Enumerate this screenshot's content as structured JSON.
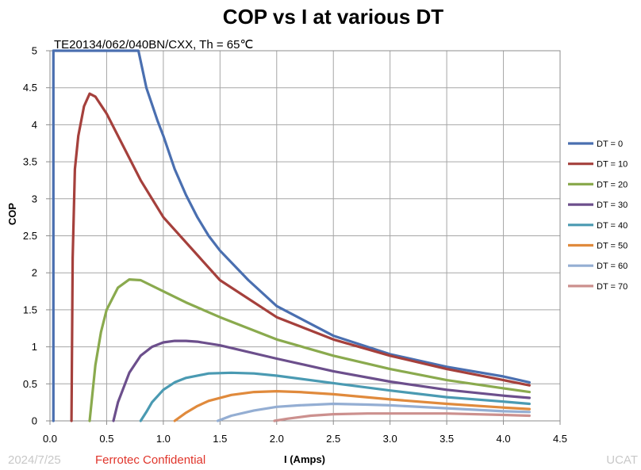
{
  "chart_data": {
    "type": "line",
    "title": "COP vs I at various DT",
    "subtitle": "TE20134/062/040BN/CXX,  Th = 65℃",
    "xlabel": "I (Amps)",
    "ylabel": "COP",
    "xlim": [
      0,
      4.5
    ],
    "ylim": [
      0,
      5
    ],
    "xticks": [
      "0.0",
      "0.5",
      "1.0",
      "1.5",
      "2.0",
      "2.5",
      "3.0",
      "3.5",
      "4.0",
      "4.5"
    ],
    "yticks": [
      "0",
      "0.5",
      "1",
      "1.5",
      "2",
      "2.5",
      "3",
      "3.5",
      "4",
      "4.5",
      "5"
    ],
    "grid": true,
    "legend_position": "right",
    "series": [
      {
        "name": "DT = 0",
        "color": "#4a6fb0",
        "x": [
          0.03,
          0.03,
          0.78,
          0.85,
          0.95,
          1.0,
          1.1,
          1.2,
          1.3,
          1.4,
          1.5,
          1.75,
          2.0,
          2.5,
          3.0,
          3.5,
          4.0,
          4.23
        ],
        "y": [
          0.0,
          5.0,
          5.0,
          4.5,
          4.05,
          3.85,
          3.4,
          3.05,
          2.75,
          2.5,
          2.3,
          1.9,
          1.55,
          1.15,
          0.9,
          0.73,
          0.6,
          0.52
        ]
      },
      {
        "name": "DT = 10",
        "color": "#a5403c",
        "x": [
          0.19,
          0.2,
          0.22,
          0.25,
          0.3,
          0.35,
          0.4,
          0.5,
          0.6,
          0.8,
          1.0,
          1.5,
          2.0,
          2.5,
          3.0,
          3.5,
          4.0,
          4.23
        ],
        "y": [
          0.0,
          2.2,
          3.4,
          3.85,
          4.25,
          4.42,
          4.38,
          4.15,
          3.85,
          3.25,
          2.75,
          1.9,
          1.4,
          1.1,
          0.88,
          0.7,
          0.55,
          0.48
        ]
      },
      {
        "name": "DT = 20",
        "color": "#8aaa4e",
        "x": [
          0.35,
          0.4,
          0.45,
          0.5,
          0.6,
          0.7,
          0.8,
          1.0,
          1.2,
          1.5,
          2.0,
          2.5,
          3.0,
          3.5,
          4.0,
          4.23
        ],
        "y": [
          0.0,
          0.75,
          1.2,
          1.5,
          1.8,
          1.91,
          1.9,
          1.75,
          1.6,
          1.4,
          1.1,
          0.88,
          0.7,
          0.55,
          0.44,
          0.39
        ]
      },
      {
        "name": "DT = 30",
        "color": "#6c4f8c",
        "x": [
          0.56,
          0.6,
          0.7,
          0.8,
          0.9,
          1.0,
          1.1,
          1.2,
          1.3,
          1.5,
          2.0,
          2.5,
          3.0,
          3.5,
          4.0,
          4.23
        ],
        "y": [
          0.0,
          0.25,
          0.65,
          0.88,
          1.0,
          1.06,
          1.08,
          1.08,
          1.07,
          1.02,
          0.84,
          0.67,
          0.53,
          0.42,
          0.34,
          0.31
        ]
      },
      {
        "name": "DT = 40",
        "color": "#4a9ab2",
        "x": [
          0.8,
          0.85,
          0.9,
          1.0,
          1.1,
          1.2,
          1.4,
          1.6,
          1.8,
          2.0,
          2.5,
          3.0,
          3.5,
          4.0,
          4.23
        ],
        "y": [
          0.0,
          0.12,
          0.25,
          0.42,
          0.52,
          0.58,
          0.64,
          0.65,
          0.64,
          0.61,
          0.51,
          0.41,
          0.32,
          0.26,
          0.23
        ]
      },
      {
        "name": "DT = 50",
        "color": "#e08a3c",
        "x": [
          1.1,
          1.2,
          1.3,
          1.4,
          1.6,
          1.8,
          2.0,
          2.2,
          2.5,
          3.0,
          3.5,
          4.0,
          4.23
        ],
        "y": [
          0.0,
          0.11,
          0.2,
          0.27,
          0.35,
          0.39,
          0.4,
          0.39,
          0.36,
          0.29,
          0.23,
          0.18,
          0.16
        ]
      },
      {
        "name": "DT = 60",
        "color": "#94aed3",
        "x": [
          1.48,
          1.6,
          1.8,
          2.0,
          2.2,
          2.5,
          2.8,
          3.0,
          3.5,
          4.0,
          4.23
        ],
        "y": [
          0.0,
          0.07,
          0.14,
          0.19,
          0.21,
          0.23,
          0.22,
          0.21,
          0.17,
          0.13,
          0.12
        ]
      },
      {
        "name": "DT = 70",
        "color": "#cc908e",
        "x": [
          1.98,
          2.1,
          2.3,
          2.5,
          2.8,
          3.0,
          3.3,
          3.5,
          4.0,
          4.23
        ],
        "y": [
          0.0,
          0.03,
          0.07,
          0.09,
          0.1,
          0.1,
          0.1,
          0.1,
          0.08,
          0.07
        ]
      }
    ]
  },
  "footer": {
    "date": "2024/7/25",
    "confidential": "Ferrotec Confidential",
    "right": "UCAT"
  }
}
